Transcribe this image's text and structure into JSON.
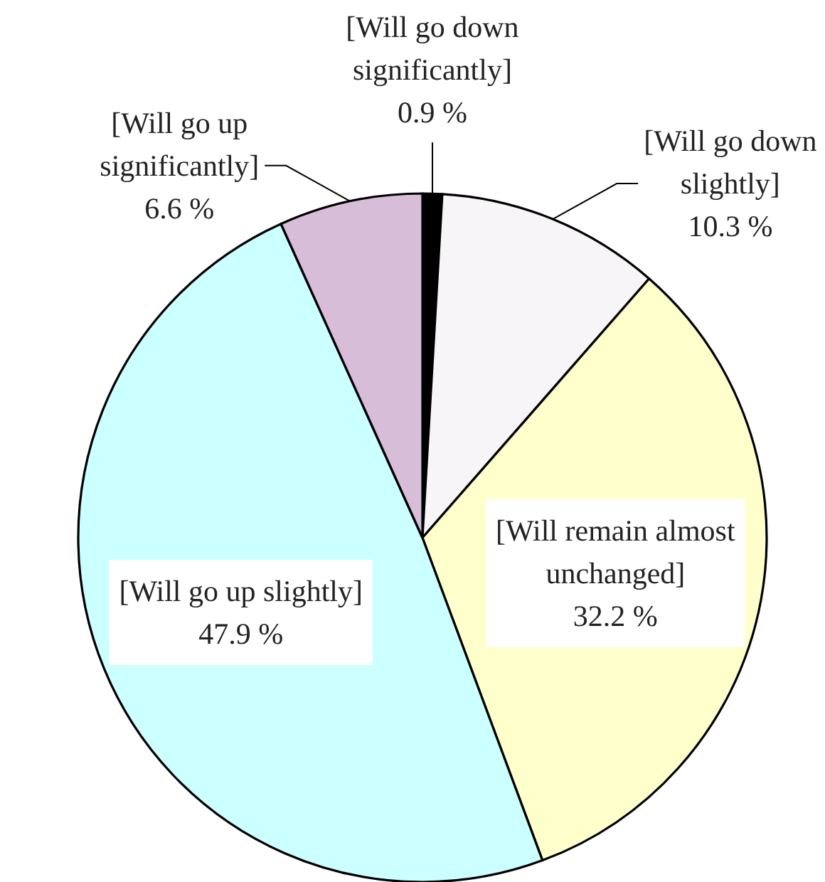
{
  "chart_data": {
    "type": "pie",
    "categories": [
      "[Will go down significantly]",
      "[Will go down slightly]",
      "[Will remain almost unchanged]",
      "[Will go up slightly]",
      "[Will go up significantly]"
    ],
    "values": [
      0.9,
      10.3,
      32.2,
      47.9,
      6.6
    ],
    "colors": [
      "#000000",
      "#f8f5f8",
      "#ffffcc",
      "#ccffff",
      "#d8bdd8"
    ],
    "value_labels": [
      "0.9 %",
      "10.3 %",
      "32.2 %",
      "47.9 %",
      "6.6 %"
    ]
  }
}
